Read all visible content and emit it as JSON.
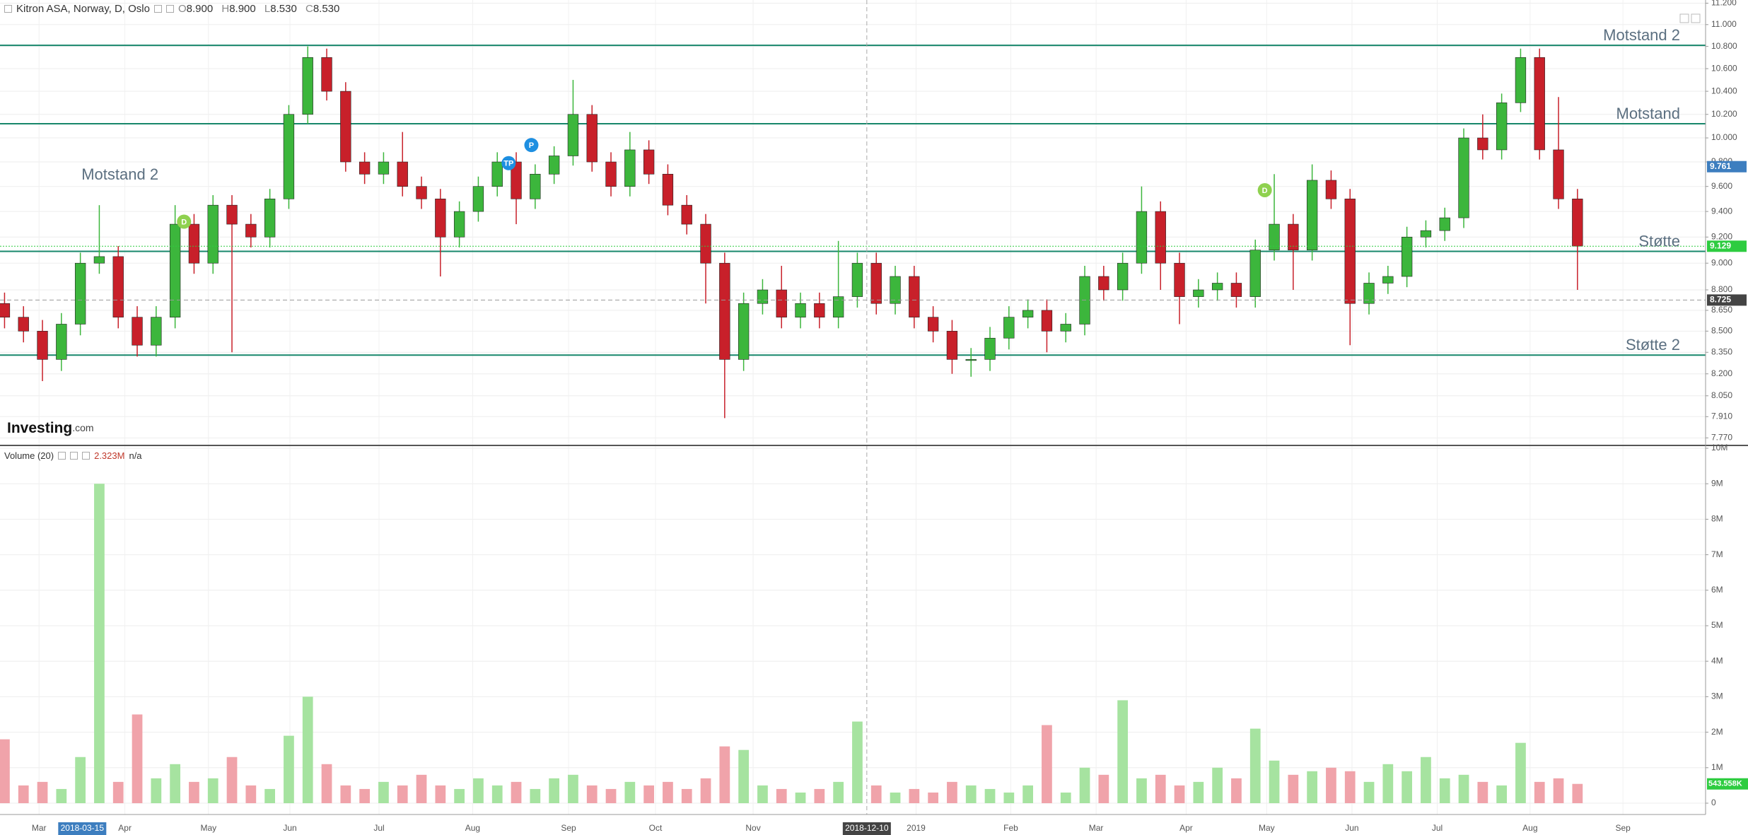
{
  "header": {
    "symbol": "Kitron ASA, Norway, D, Oslo",
    "ohlc": [
      {
        "key": "O",
        "value": "8.900"
      },
      {
        "key": "H",
        "value": "8.900"
      },
      {
        "key": "L",
        "value": "8.530"
      },
      {
        "key": "C",
        "value": "8.530"
      }
    ]
  },
  "volume_header": {
    "title": "Volume (20)",
    "value": "2.323M",
    "extra": "n/a"
  },
  "logo": {
    "brand": "Investing",
    "suffix": ".com"
  },
  "chart_data": [
    {
      "type": "candlestick",
      "log_scale": true,
      "grid": true,
      "xlim": [
        -0.24,
        89.76
      ],
      "ylim": [
        7.73,
        11.23
      ],
      "yticks": [
        {
          "value": 11.2,
          "label": "11.200"
        },
        {
          "value": 11.0,
          "label": "11.000"
        },
        {
          "value": 10.8,
          "label": "10.800"
        },
        {
          "value": 10.6,
          "label": "10.600"
        },
        {
          "value": 10.4,
          "label": "10.400"
        },
        {
          "value": 10.2,
          "label": "10.200"
        },
        {
          "value": 10.0,
          "label": "10.000"
        },
        {
          "value": 9.8,
          "label": "9.800"
        },
        {
          "value": 9.6,
          "label": "9.600"
        },
        {
          "value": 9.4,
          "label": "9.400"
        },
        {
          "value": 9.2,
          "label": "9.200"
        },
        {
          "value": 9.0,
          "label": "9.000"
        },
        {
          "value": 8.8,
          "label": "8.800"
        },
        {
          "value": 8.65,
          "label": "8.650"
        },
        {
          "value": 8.5,
          "label": "8.500"
        },
        {
          "value": 8.35,
          "label": "8.350"
        },
        {
          "value": 8.2,
          "label": "8.200"
        },
        {
          "value": 8.05,
          "label": "8.050"
        },
        {
          "value": 7.91,
          "label": "7.910"
        },
        {
          "value": 7.77,
          "label": "7.770"
        }
      ],
      "up_color": "#3cb63c",
      "down_color": "#c8202a",
      "open": [
        8.7,
        8.6,
        8.5,
        8.3,
        8.55,
        9.0,
        9.05,
        8.6,
        8.4,
        8.6,
        9.3,
        9.0,
        9.45,
        9.3,
        9.2,
        9.5,
        10.2,
        10.7,
        10.4,
        9.8,
        9.7,
        9.8,
        9.6,
        9.5,
        9.2,
        9.4,
        9.6,
        9.8,
        9.5,
        9.7,
        9.85,
        10.2,
        9.8,
        9.6,
        9.9,
        9.7,
        9.45,
        9.3,
        9.0,
        8.3,
        8.7,
        8.8,
        8.6,
        8.7,
        8.6,
        8.75,
        9.0,
        8.7,
        8.9,
        8.6,
        8.5,
        8.3,
        8.3,
        8.45,
        8.6,
        8.65,
        8.5,
        8.55,
        8.9,
        8.8,
        9.0,
        9.4,
        9.0,
        8.75,
        8.8,
        8.85,
        8.75,
        9.1,
        9.3,
        9.1,
        9.65,
        9.5,
        8.7,
        8.85,
        8.9,
        9.2,
        9.25,
        9.35,
        10.0,
        9.9,
        10.3,
        10.7,
        9.9,
        9.5
      ],
      "high": [
        8.78,
        8.68,
        8.58,
        8.63,
        9.08,
        9.45,
        9.13,
        8.68,
        8.68,
        9.45,
        9.38,
        9.53,
        9.53,
        9.38,
        9.58,
        10.28,
        10.8,
        10.78,
        10.48,
        9.88,
        9.88,
        10.05,
        9.68,
        9.58,
        9.48,
        9.68,
        9.88,
        9.88,
        9.78,
        9.93,
        10.5,
        10.28,
        9.88,
        10.05,
        9.98,
        9.78,
        9.53,
        9.38,
        9.08,
        8.78,
        8.88,
        8.98,
        8.78,
        8.78,
        9.17,
        9.08,
        9.08,
        8.98,
        8.98,
        8.68,
        8.58,
        8.38,
        8.53,
        8.68,
        8.73,
        8.73,
        8.63,
        8.98,
        8.98,
        9.08,
        9.6,
        9.48,
        9.08,
        8.88,
        8.93,
        8.93,
        9.18,
        9.7,
        9.38,
        9.78,
        9.73,
        9.58,
        8.93,
        8.98,
        9.28,
        9.33,
        9.43,
        10.08,
        10.2,
        10.38,
        10.78,
        10.78,
        10.35,
        9.58
      ],
      "low": [
        8.52,
        8.42,
        8.15,
        8.22,
        8.47,
        8.92,
        8.52,
        8.32,
        8.32,
        8.52,
        8.92,
        8.92,
        8.35,
        9.12,
        9.12,
        9.42,
        10.12,
        10.32,
        9.72,
        9.62,
        9.62,
        9.52,
        9.42,
        8.9,
        9.12,
        9.32,
        9.52,
        9.3,
        9.42,
        9.62,
        9.77,
        9.72,
        9.52,
        9.52,
        9.62,
        9.37,
        9.22,
        8.7,
        7.9,
        8.22,
        8.62,
        8.52,
        8.52,
        8.52,
        8.52,
        8.67,
        8.62,
        8.62,
        8.52,
        8.42,
        8.2,
        8.18,
        8.22,
        8.37,
        8.52,
        8.35,
        8.42,
        8.47,
        8.72,
        8.72,
        8.92,
        8.8,
        8.55,
        8.67,
        8.72,
        8.67,
        8.67,
        9.02,
        8.8,
        9.02,
        9.42,
        8.4,
        8.62,
        8.77,
        8.82,
        9.12,
        9.17,
        9.27,
        9.82,
        9.82,
        10.22,
        9.82,
        9.42,
        8.8
      ],
      "close": [
        8.6,
        8.5,
        8.3,
        8.55,
        9.0,
        9.05,
        8.6,
        8.4,
        8.6,
        9.3,
        9.0,
        9.45,
        9.3,
        9.2,
        9.5,
        10.2,
        10.7,
        10.4,
        9.8,
        9.7,
        9.8,
        9.6,
        9.5,
        9.2,
        9.4,
        9.6,
        9.8,
        9.5,
        9.7,
        9.85,
        10.2,
        9.8,
        9.6,
        9.9,
        9.7,
        9.45,
        9.3,
        9.0,
        8.3,
        8.7,
        8.8,
        8.6,
        8.7,
        8.6,
        8.75,
        9.0,
        8.7,
        8.9,
        8.6,
        8.5,
        8.3,
        8.3,
        8.45,
        8.6,
        8.65,
        8.5,
        8.55,
        8.9,
        8.8,
        9.0,
        9.4,
        9.0,
        8.75,
        8.8,
        8.85,
        8.75,
        9.1,
        9.3,
        9.1,
        9.65,
        9.5,
        8.7,
        8.85,
        8.9,
        9.2,
        9.25,
        9.35,
        10.0,
        9.9,
        10.3,
        10.7,
        9.9,
        9.5,
        9.13
      ],
      "levels": [
        {
          "label": "Motstand 2",
          "value": 10.81
        },
        {
          "label": "Motstand",
          "value": 10.12
        },
        {
          "label": "Støtte",
          "value": 9.09
        },
        {
          "label": "Støtte 2",
          "value": 8.33
        }
      ],
      "level_color": "#17876b",
      "level_label_color": "#5b6f80",
      "annotations": [
        {
          "text": "Motstand 2",
          "x": 4.06,
          "y": 9.69
        }
      ],
      "markers": [
        {
          "label": "D",
          "x": 9.47,
          "y": 9.32,
          "color": "#8fd14f"
        },
        {
          "label": "D",
          "x": 66.5,
          "y": 9.57,
          "color": "#8fd14f"
        },
        {
          "label": "P",
          "x": 27.8,
          "y": 9.94,
          "color": "#1e8fe1"
        },
        {
          "label": "TP",
          "x": 26.6,
          "y": 9.79,
          "color": "#1e8fe1"
        }
      ],
      "price_tags": [
        {
          "value": 9.761,
          "label": "9.761",
          "color": "#3d7ebf",
          "line": "none"
        },
        {
          "value": 9.129,
          "label": "9.129",
          "color": "#2ecc40",
          "line": "dotted"
        },
        {
          "value": 8.725,
          "label": "8.725",
          "color": "#444444",
          "line": "dashed"
        }
      ]
    },
    {
      "type": "bar",
      "xlim": [
        -0.24,
        89.76
      ],
      "ylim": [
        0,
        10000000
      ],
      "yticks": [
        0,
        {
          "value": 1000000,
          "label": "1M"
        },
        {
          "value": 2000000,
          "label": "2M"
        },
        {
          "value": 3000000,
          "label": "3M"
        },
        {
          "value": 4000000,
          "label": "4M"
        },
        {
          "value": 5000000,
          "label": "5M"
        },
        {
          "value": 6000000,
          "label": "6M"
        },
        {
          "value": 7000000,
          "label": "7M"
        },
        {
          "value": 8000000,
          "label": "8M"
        },
        {
          "value": 9000000,
          "label": "9M"
        },
        {
          "value": 10000000,
          "label": "10M"
        }
      ],
      "up_color": "#a6e3a0",
      "down_color": "#f0a3aa",
      "values": [
        1800000,
        500000,
        600000,
        400000,
        1300000,
        9000000,
        600000,
        2500000,
        700000,
        1100000,
        600000,
        700000,
        1300000,
        500000,
        400000,
        1900000,
        3000000,
        1100000,
        500000,
        400000,
        600000,
        500000,
        800000,
        500000,
        400000,
        700000,
        500000,
        600000,
        400000,
        700000,
        800000,
        500000,
        400000,
        600000,
        500000,
        600000,
        400000,
        700000,
        1600000,
        1500000,
        500000,
        400000,
        300000,
        400000,
        600000,
        2300000,
        500000,
        300000,
        400000,
        300000,
        600000,
        500000,
        400000,
        300000,
        500000,
        2200000,
        300000,
        1000000,
        800000,
        2900000,
        700000,
        800000,
        500000,
        600000,
        1000000,
        700000,
        2100000,
        1200000,
        800000,
        900000,
        1000000,
        900000,
        600000,
        1100000,
        900000,
        1300000,
        700000,
        800000,
        600000,
        500000,
        1700000,
        600000,
        700000,
        543558
      ],
      "volume_tag": {
        "value": 543558,
        "label": "543.558K",
        "color": "#2ecc40"
      },
      "xticks": [
        {
          "value": 1.82,
          "label": "Mar"
        },
        {
          "value": 6.35,
          "label": "Apr"
        },
        {
          "value": 10.76,
          "label": "May"
        },
        {
          "value": 15.06,
          "label": "Jun"
        },
        {
          "value": 19.76,
          "label": "Jul"
        },
        {
          "value": 24.7,
          "label": "Aug"
        },
        {
          "value": 29.76,
          "label": "Sep"
        },
        {
          "value": 34.35,
          "label": "Oct"
        },
        {
          "value": 39.5,
          "label": "Nov"
        },
        {
          "value": 48.1,
          "label": "2019"
        },
        {
          "value": 53.1,
          "label": "Feb"
        },
        {
          "value": 57.6,
          "label": "Mar"
        },
        {
          "value": 62.35,
          "label": "Apr"
        },
        {
          "value": 66.6,
          "label": "May"
        },
        {
          "value": 71.1,
          "label": "Jun"
        },
        {
          "value": 75.6,
          "label": "Jul"
        },
        {
          "value": 80.5,
          "label": "Aug"
        },
        {
          "value": 85.4,
          "label": "Sep"
        }
      ],
      "highlight": {
        "x": 4.1,
        "label": "2018-03-15",
        "color": "#3d7ebf"
      },
      "cursor": {
        "x": 45.5,
        "label": "2018-12-10",
        "color": "#444444"
      }
    }
  ]
}
